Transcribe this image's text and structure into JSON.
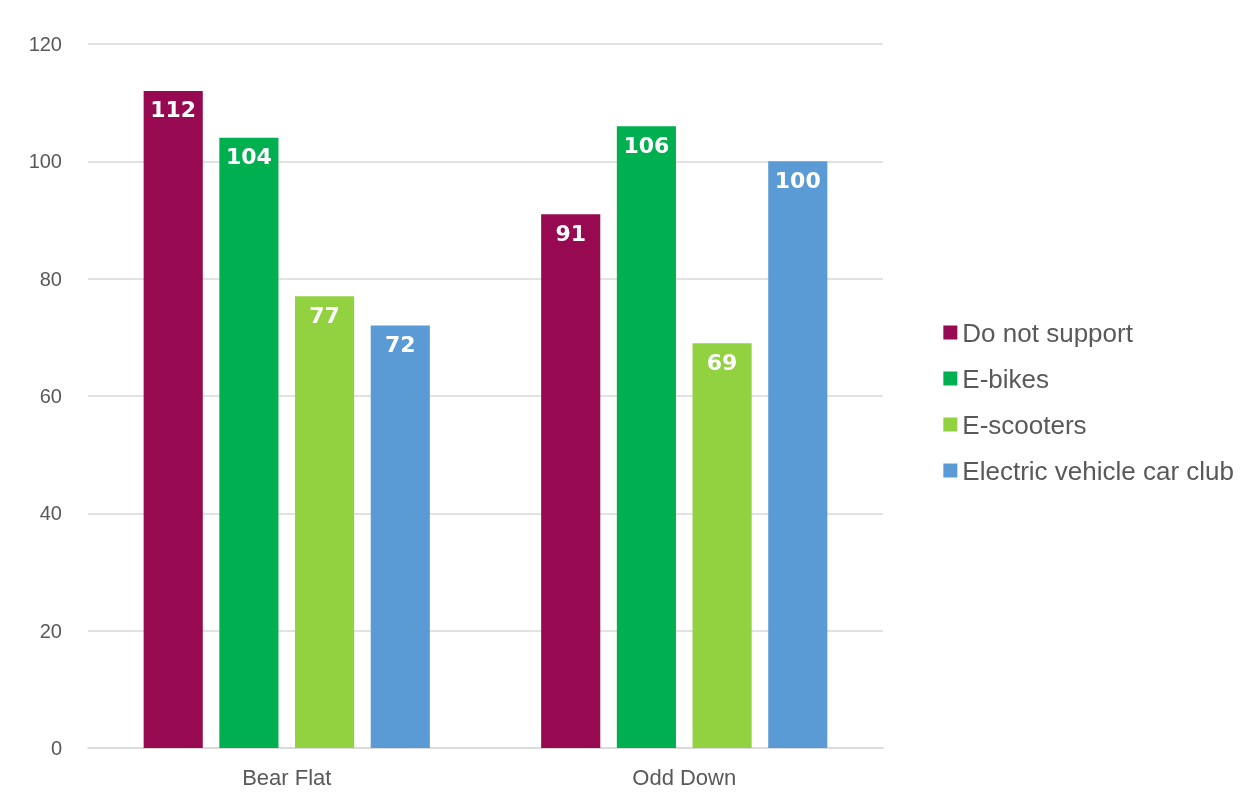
{
  "chart_data": {
    "type": "bar",
    "categories": [
      "Bear Flat",
      "Odd Down"
    ],
    "series": [
      {
        "name": "Do not support",
        "color": "#970a52",
        "values": [
          112,
          91
        ]
      },
      {
        "name": "E-bikes",
        "color": "#00b050",
        "values": [
          104,
          106
        ]
      },
      {
        "name": "E-scooters",
        "color": "#92d13f",
        "values": [
          77,
          69
        ]
      },
      {
        "name": "Electric vehicle car club",
        "color": "#5b9bd5",
        "values": [
          72,
          100
        ]
      }
    ],
    "ylim": [
      0,
      120
    ],
    "yticks": [
      0,
      20,
      40,
      60,
      80,
      100,
      120
    ],
    "grid": "y",
    "legend": "right",
    "data_labels": true
  }
}
